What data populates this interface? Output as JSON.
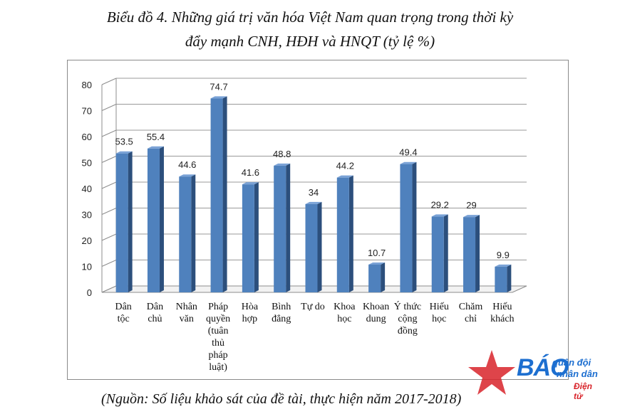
{
  "title_line1": "Biểu đồ 4. Những giá trị văn hóa Việt Nam quan trọng trong thời kỳ",
  "title_line2": "đẩy mạnh CNH, HĐH và HNQT (tỷ lệ %)",
  "source": "(Nguồn: Số liệu khảo sát của đề tài, thực hiện năm 2017-2018)",
  "logo": {
    "brand": "BÁO",
    "line1": "quân đội",
    "line2": "nhân dân",
    "line3": "Điện tử"
  },
  "chart_data": {
    "type": "bar",
    "categories": [
      [
        "Dân",
        "tộc"
      ],
      [
        "Dân",
        "chủ"
      ],
      [
        "Nhân",
        "văn"
      ],
      [
        "Pháp",
        "quyền",
        "(tuân",
        "thủ",
        "pháp",
        "luật)"
      ],
      [
        "Hòa",
        "hợp"
      ],
      [
        "Bình",
        "đẳng"
      ],
      [
        "Tự do"
      ],
      [
        "Khoa",
        "học"
      ],
      [
        "Khoan",
        "dung"
      ],
      [
        "Ý thức",
        "cộng",
        "đồng"
      ],
      [
        "Hiếu",
        "học"
      ],
      [
        "Chăm",
        "chỉ"
      ],
      [
        "Hiếu",
        "khách"
      ]
    ],
    "values": [
      53.5,
      55.4,
      44.6,
      74.7,
      41.6,
      48.8,
      34,
      44.2,
      10.7,
      49.4,
      29.2,
      29,
      9.9
    ],
    "value_labels": [
      "53.5",
      "55.4",
      "44.6",
      "74.7",
      "41.6",
      "48.8",
      "34",
      "44.2",
      "10.7",
      "49.4",
      "29.2",
      "29",
      "9.9"
    ],
    "yticks": [
      "0",
      "10",
      "20",
      "30",
      "40",
      "50",
      "60",
      "70",
      "80"
    ],
    "ylim": [
      0,
      80
    ],
    "grid": true,
    "legend": false,
    "bar_color": "#4f81bd",
    "bar_side_color": "#2c4f7c",
    "bar_top_color": "#7aa2d6"
  }
}
